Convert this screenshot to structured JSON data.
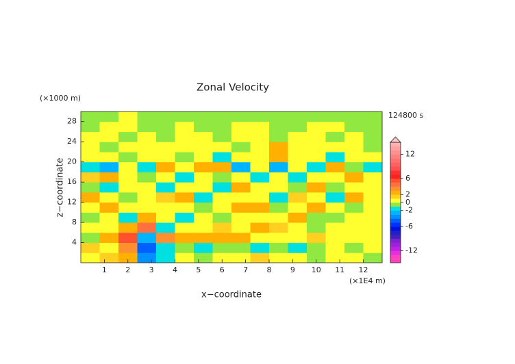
{
  "chart_data": {
    "type": "heatmap",
    "title": "Zonal Velocity",
    "x_label": "x−coordinate",
    "y_label": "z−coordinate",
    "x_unit": "(×1E4 m)",
    "y_unit": "(×1000 m)",
    "time_label": "124800 s",
    "xlim": [
      0,
      12.8
    ],
    "ylim": [
      0,
      30
    ],
    "xticks": [
      1,
      2,
      3,
      4,
      5,
      6,
      7,
      8,
      9,
      10,
      11,
      12
    ],
    "yticks": [
      4,
      8,
      12,
      16,
      20,
      24,
      28
    ],
    "x": [
      0.4,
      1.2,
      2.0,
      2.8,
      3.6,
      4.4,
      5.2,
      6.0,
      6.8,
      7.6,
      8.4,
      9.2,
      10.0,
      10.8,
      11.6,
      12.4
    ],
    "y": [
      1,
      3,
      5,
      7,
      9,
      11,
      13,
      15,
      17,
      19,
      21,
      23,
      25,
      27,
      29
    ],
    "z": [
      [
        0.5,
        1.5,
        2.5,
        -4,
        -1.5,
        0.5,
        -0.5,
        0.5,
        0.5,
        1.5,
        0.5,
        0.5,
        -0.5,
        0.5,
        0.5,
        -0.5
      ],
      [
        1.5,
        0.5,
        3.5,
        -5,
        -1.5,
        -0.5,
        -1.5,
        -0.5,
        -0.5,
        -1.5,
        -0.5,
        -1.5,
        -0.5,
        0.5,
        -0.5,
        0.5
      ],
      [
        -0.5,
        2.5,
        5,
        -2.5,
        3.5,
        2.5,
        2.5,
        2.5,
        2.5,
        0.5,
        0.5,
        0.5,
        1.5,
        0.5,
        0.5,
        0.5
      ],
      [
        0.5,
        0.5,
        2.5,
        4,
        -1.5,
        0.5,
        0.5,
        1.5,
        0.5,
        2.5,
        1.5,
        0.5,
        -0.5,
        0.5,
        0.5,
        0.5
      ],
      [
        -0.5,
        0.5,
        -1.5,
        2.5,
        0.5,
        -1.5,
        0.5,
        -0.5,
        0.5,
        0.5,
        0.5,
        2.5,
        -0.5,
        -0.5,
        0.5,
        0.5
      ],
      [
        0.5,
        2.5,
        0.5,
        0.5,
        0.5,
        0.5,
        -0.5,
        0.5,
        2.5,
        2.5,
        -0.5,
        0.5,
        2.5,
        0.5,
        -0.5,
        0.5
      ],
      [
        2.5,
        0.5,
        -0.5,
        0.5,
        1.5,
        2.5,
        -1.5,
        0.5,
        0.5,
        0.5,
        -1.5,
        1.5,
        0.5,
        -1.5,
        2.5,
        0.5
      ],
      [
        -0.5,
        -1.5,
        0.5,
        0.5,
        -1.5,
        0.5,
        0.5,
        -1.5,
        2.5,
        0.5,
        0.5,
        -0.5,
        2.5,
        -0.5,
        0.5,
        0.5
      ],
      [
        1.5,
        2.5,
        0.5,
        -0.5,
        0.5,
        -1.5,
        0.5,
        -0.5,
        0.5,
        -1.5,
        0.5,
        -1.5,
        0.5,
        0.5,
        2.5,
        0.5
      ],
      [
        -1.5,
        -2.5,
        0.5,
        -1.5,
        2.5,
        0.5,
        2.5,
        2.5,
        -2.5,
        0.5,
        -2.5,
        0.5,
        -1.5,
        2.5,
        -0.5,
        -1.5
      ],
      [
        0.5,
        0.5,
        -0.5,
        0.5,
        0.5,
        -0.5,
        0.5,
        -1.5,
        0.5,
        0.5,
        2.5,
        0.5,
        0.5,
        -1.5,
        0.5,
        0.5
      ],
      [
        0.5,
        -0.5,
        0.5,
        0.5,
        0.5,
        0.5,
        0.5,
        0.5,
        -0.5,
        0.5,
        2.5,
        0.5,
        0.5,
        0.5,
        0.5,
        -0.5
      ],
      [
        0.5,
        0.5,
        -0.5,
        0.5,
        -0.5,
        0.5,
        0.5,
        -0.5,
        0.5,
        0.5,
        -0.5,
        0.5,
        0.5,
        -0.5,
        0.5,
        -0.5
      ],
      [
        -0.5,
        0.5,
        0.5,
        -0.5,
        -0.5,
        0.5,
        -0.5,
        -0.5,
        0.5,
        0.5,
        -0.5,
        -0.5,
        0.5,
        0.5,
        -0.5,
        -0.5
      ],
      [
        -0.5,
        -0.5,
        0.5,
        -0.5,
        -0.5,
        -0.5,
        -0.5,
        -0.5,
        -0.5,
        -0.5,
        -0.5,
        -0.5,
        -0.5,
        -0.5,
        -0.5,
        -0.5
      ]
    ],
    "colorbar": {
      "levels": [
        -15,
        -14,
        -13,
        -12,
        -11,
        -10,
        -9,
        -8,
        -7,
        -6,
        -5,
        -4,
        -3,
        -2,
        -1,
        0,
        1,
        2,
        3,
        4,
        5,
        6,
        7,
        8,
        9,
        10,
        11,
        12,
        13,
        14,
        15
      ],
      "colors": [
        "#ff40c0",
        "#ff40c0",
        "#e030e0",
        "#c020e0",
        "#a020e0",
        "#8020d0",
        "#4020c0",
        "#2020c8",
        "#0010e0",
        "#0030ff",
        "#0060ff",
        "#0090ff",
        "#00b4ff",
        "#00e0e0",
        "#90e840",
        "#ffff30",
        "#ffd020",
        "#ffb000",
        "#ff9030",
        "#ff7040",
        "#ff5030",
        "#ff2020",
        "#ff3030",
        "#ff5050",
        "#ff6060",
        "#ff7070",
        "#ff8080",
        "#ff9090",
        "#ffa0a0",
        "#ffb0b0"
      ],
      "ticks": [
        12,
        6,
        2,
        0,
        -2,
        -6,
        -12
      ]
    }
  }
}
